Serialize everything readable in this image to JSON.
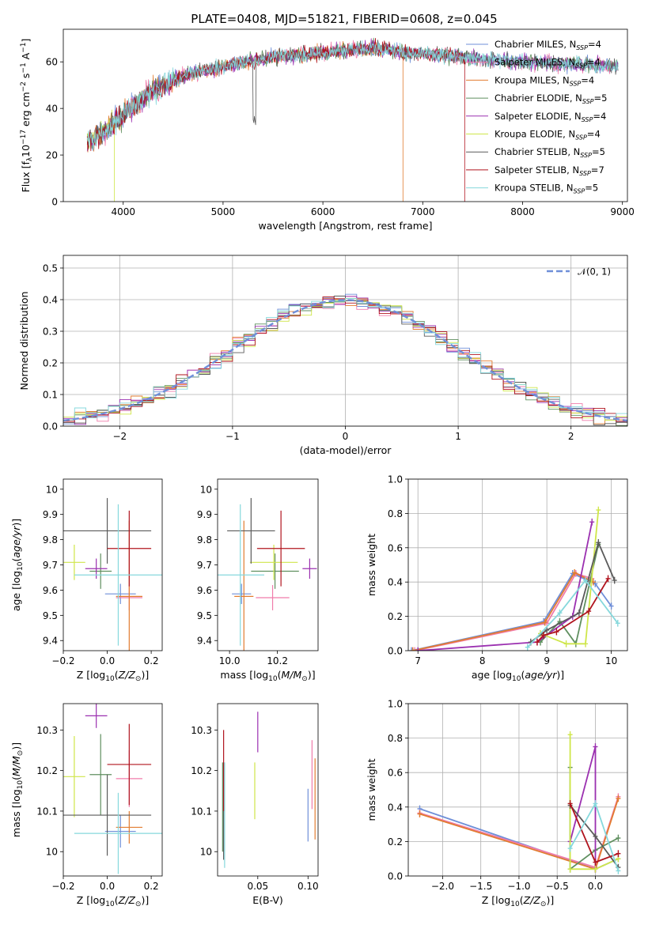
{
  "figure": {
    "title": "PLATE=0408, MJD=51821, FIBERID=0608, z=0.045"
  },
  "models": [
    {
      "name": "Chabrier MILES",
      "nssp": "4",
      "color": "#6f8fd8"
    },
    {
      "name": "Salpeter MILES",
      "nssp": "4",
      "color": "#f07cab"
    },
    {
      "name": "Kroupa MILES",
      "nssp": "4",
      "color": "#e27c30"
    },
    {
      "name": "Chabrier ELODIE",
      "nssp": "5",
      "color": "#5f8f5f"
    },
    {
      "name": "Salpeter ELODIE",
      "nssp": "4",
      "color": "#9b30b0"
    },
    {
      "name": "Kroupa ELODIE",
      "nssp": "4",
      "color": "#cfe64a"
    },
    {
      "name": "Chabrier STELIB",
      "nssp": "5",
      "color": "#5a5a5a"
    },
    {
      "name": "Salpeter STELIB",
      "nssp": "7",
      "color": "#b0141e"
    },
    {
      "name": "Kroupa STELIB",
      "nssp": "5",
      "color": "#86d8dc"
    }
  ],
  "chart_data": [
    {
      "id": "spectrum",
      "type": "line",
      "xlabel": "wavelength [Angstrom, rest frame]",
      "ylabel": "Flux [f_λ10^-17 erg cm^-2 s^-1 A^-1]",
      "ylabel_parts": [
        "Flux [f",
        "λ",
        "10",
        "−17",
        " erg cm",
        "−2",
        " s",
        "−1",
        " A",
        "−1",
        "]"
      ],
      "xlim": [
        3400,
        9050
      ],
      "ylim": [
        0,
        74
      ],
      "xticks": [
        4000,
        5000,
        6000,
        7000,
        8000,
        9000
      ],
      "yticks": [
        0,
        20,
        40,
        60
      ],
      "legend_position": "upper right",
      "legend_subscript": "SSP",
      "curve_knots": {
        "x": [
          3640,
          3800,
          4000,
          4300,
          4600,
          5000,
          5500,
          6000,
          6500,
          6800,
          7200,
          7600,
          8000,
          8500,
          8900
        ],
        "y": [
          25,
          30,
          37,
          48,
          54,
          58,
          62,
          64,
          66,
          64,
          63,
          61,
          60,
          59,
          58
        ]
      },
      "drops": [
        {
          "model": "Kroupa ELODIE",
          "x": 3910
        },
        {
          "model": "Kroupa MILES",
          "x": 6800
        },
        {
          "model": "Salpeter STELIB",
          "x": 7420
        }
      ]
    },
    {
      "id": "residuals",
      "type": "histogram",
      "xlabel": "(data-model)/error",
      "ylabel": "Normed distribution",
      "xlim": [
        -2.5,
        2.5
      ],
      "ylim": [
        0,
        0.54
      ],
      "xticks": [
        -2,
        -1,
        0,
        1,
        2
      ],
      "xtick_labels": [
        "−2",
        "−1",
        "0",
        "1",
        "2"
      ],
      "yticks": [
        0.0,
        0.1,
        0.2,
        0.3,
        0.4,
        0.5
      ],
      "ytick_labels": [
        "0.0",
        "0.1",
        "0.2",
        "0.3",
        "0.4",
        "0.5"
      ],
      "bin_width": 0.1,
      "reference": {
        "label": "𝒩(0, 1)",
        "color": "#6f8fd8"
      },
      "legend_position": "upper right",
      "grid": true
    },
    {
      "id": "age_vs_Z",
      "type": "errorbar",
      "xlabel": "Z [log10(Z/Z_sun)]",
      "ylabel": "age [log10(age/yr)]",
      "xlim": [
        -0.2,
        0.25
      ],
      "ylim": [
        9.36,
        10.04
      ],
      "xticks": [
        -0.2,
        0.0,
        0.2
      ],
      "xtick_labels": [
        "−0.2",
        "0.0",
        "0.2"
      ],
      "yticks": [
        9.4,
        9.5,
        9.6,
        9.7,
        9.8,
        9.9,
        10.0
      ],
      "points": [
        {
          "model": "Chabrier MILES",
          "x": 0.06,
          "xerr": 0.07,
          "y": 9.585,
          "yerr": 0.04
        },
        {
          "model": "Salpeter MILES",
          "x": 0.1,
          "xerr": 0.06,
          "y": 9.57,
          "yerr": 0.05
        },
        {
          "model": "Kroupa MILES",
          "x": 0.1,
          "xerr": 0.06,
          "y": 9.575,
          "yerr": 0.3
        },
        {
          "model": "Chabrier ELODIE",
          "x": -0.03,
          "xerr": 0.05,
          "y": 9.675,
          "yerr": 0.07
        },
        {
          "model": "Salpeter ELODIE",
          "x": -0.05,
          "xerr": 0.05,
          "y": 9.685,
          "yerr": 0.04
        },
        {
          "model": "Kroupa ELODIE",
          "x": -0.15,
          "xerr": 0.05,
          "y": 9.71,
          "yerr": 0.07
        },
        {
          "model": "Chabrier STELIB",
          "x": 0.0,
          "xerr": 0.2,
          "y": 9.835,
          "yerr": 0.13
        },
        {
          "model": "Salpeter STELIB",
          "x": 0.1,
          "xerr": 0.1,
          "y": 9.765,
          "yerr": 0.15
        },
        {
          "model": "Kroupa STELIB",
          "x": 0.05,
          "xerr": 0.2,
          "y": 9.66,
          "yerr": 0.28
        }
      ]
    },
    {
      "id": "age_vs_mass",
      "type": "errorbar",
      "xlabel": "mass [log10(M/M_sun)]",
      "ylabel": "",
      "xlim": [
        9.95,
        10.37
      ],
      "ylim": [
        9.36,
        10.04
      ],
      "xticks": [
        10.0,
        10.2
      ],
      "xtick_labels": [
        "10.0",
        "10.2"
      ],
      "yticks": [
        9.4,
        9.5,
        9.6,
        9.7,
        9.8,
        9.9,
        10.0
      ],
      "points": [
        {
          "model": "Chabrier MILES",
          "x": 10.05,
          "xerr": 0.04,
          "y": 9.585,
          "yerr": 0.04
        },
        {
          "model": "Salpeter MILES",
          "x": 10.18,
          "xerr": 0.07,
          "y": 9.57,
          "yerr": 0.05
        },
        {
          "model": "Kroupa MILES",
          "x": 10.06,
          "xerr": 0.04,
          "y": 9.575,
          "yerr": 0.3
        },
        {
          "model": "Chabrier ELODIE",
          "x": 10.19,
          "xerr": 0.1,
          "y": 9.675,
          "yerr": 0.07
        },
        {
          "model": "Salpeter ELODIE",
          "x": 10.335,
          "xerr": 0.03,
          "y": 9.685,
          "yerr": 0.04
        },
        {
          "model": "Kroupa ELODIE",
          "x": 10.185,
          "xerr": 0.1,
          "y": 9.71,
          "yerr": 0.07
        },
        {
          "model": "Chabrier STELIB",
          "x": 10.09,
          "xerr": 0.1,
          "y": 9.835,
          "yerr": 0.13
        },
        {
          "model": "Salpeter STELIB",
          "x": 10.215,
          "xerr": 0.1,
          "y": 9.765,
          "yerr": 0.15
        },
        {
          "model": "Kroupa STELIB",
          "x": 10.045,
          "xerr": 0.1,
          "y": 9.66,
          "yerr": 0.28
        }
      ]
    },
    {
      "id": "mass_weight_vs_age",
      "type": "line",
      "xlabel": "age [log10(age/yr)]",
      "ylabel": "mass weight",
      "xlim": [
        6.85,
        10.25
      ],
      "ylim": [
        0,
        1.0
      ],
      "xticks": [
        7,
        8,
        9,
        10
      ],
      "yticks": [
        0.0,
        0.2,
        0.4,
        0.6,
        0.8,
        1.0
      ],
      "ytick_labels": [
        "0.0",
        "0.2",
        "0.4",
        "0.6",
        "0.8",
        "1.0"
      ],
      "grid": true,
      "series": [
        {
          "model": "Chabrier MILES",
          "x": [
            6.9,
            8.95,
            9.4,
            9.75,
            10.0
          ],
          "y": [
            0.0,
            0.17,
            0.45,
            0.39,
            0.26
          ],
          "yerr": 0.02
        },
        {
          "model": "Salpeter MILES",
          "x": [
            6.95,
            9.0,
            9.45,
            9.7
          ],
          "y": [
            0.0,
            0.16,
            0.45,
            0.42
          ],
          "yerr": 0.02
        },
        {
          "model": "Kroupa MILES",
          "x": [
            6.92,
            8.97,
            9.43,
            9.72
          ],
          "y": [
            0.0,
            0.165,
            0.455,
            0.4
          ],
          "yerr": 0.02
        },
        {
          "model": "Chabrier ELODIE",
          "x": [
            8.9,
            9.2,
            9.45,
            9.8
          ],
          "y": [
            0.05,
            0.17,
            0.04,
            0.62
          ],
          "yerr": 0.02
        },
        {
          "model": "Salpeter ELODIE",
          "x": [
            7.0,
            8.85,
            9.4,
            9.7
          ],
          "y": [
            0.0,
            0.05,
            0.2,
            0.75
          ],
          "yerr": 0.02
        },
        {
          "model": "Kroupa ELODIE",
          "x": [
            8.9,
            9.3,
            9.6,
            9.8
          ],
          "y": [
            0.1,
            0.04,
            0.04,
            0.82
          ],
          "yerr": 0.02
        },
        {
          "model": "Chabrier STELIB",
          "x": [
            8.75,
            9.0,
            9.5,
            9.8,
            10.05
          ],
          "y": [
            0.05,
            0.12,
            0.22,
            0.63,
            0.41
          ],
          "yerr": 0.02
        },
        {
          "model": "Salpeter STELIB",
          "x": [
            8.85,
            8.95,
            9.15,
            9.65,
            9.95
          ],
          "y": [
            0.05,
            0.09,
            0.11,
            0.23,
            0.42
          ],
          "yerr": 0.02
        },
        {
          "model": "Kroupa STELIB",
          "x": [
            8.7,
            9.2,
            9.6,
            10.1
          ],
          "y": [
            0.02,
            0.22,
            0.41,
            0.16
          ],
          "yerr": 0.02
        }
      ]
    },
    {
      "id": "mass_vs_Z",
      "type": "errorbar",
      "xlabel": "Z [log10(Z/Z_sun)]",
      "ylabel": "mass [log10(M/M_sun)]",
      "xlim": [
        -0.2,
        0.25
      ],
      "ylim": [
        9.94,
        10.365
      ],
      "xticks": [
        -0.2,
        0.0,
        0.2
      ],
      "xtick_labels": [
        "−0.2",
        "0.0",
        "0.2"
      ],
      "yticks": [
        10.0,
        10.1,
        10.2,
        10.3
      ],
      "points": [
        {
          "model": "Chabrier MILES",
          "x": 0.06,
          "xerr": 0.07,
          "y": 10.05,
          "yerr": 0.04
        },
        {
          "model": "Salpeter MILES",
          "x": 0.1,
          "xerr": 0.06,
          "y": 10.18,
          "yerr": 0.07
        },
        {
          "model": "Kroupa MILES",
          "x": 0.1,
          "xerr": 0.06,
          "y": 10.06,
          "yerr": 0.04
        },
        {
          "model": "Chabrier ELODIE",
          "x": -0.03,
          "xerr": 0.05,
          "y": 10.19,
          "yerr": 0.1
        },
        {
          "model": "Salpeter ELODIE",
          "x": -0.05,
          "xerr": 0.05,
          "y": 10.335,
          "yerr": 0.03
        },
        {
          "model": "Kroupa ELODIE",
          "x": -0.15,
          "xerr": 0.05,
          "y": 10.185,
          "yerr": 0.1
        },
        {
          "model": "Chabrier STELIB",
          "x": 0.0,
          "xerr": 0.2,
          "y": 10.09,
          "yerr": 0.1
        },
        {
          "model": "Salpeter STELIB",
          "x": 0.1,
          "xerr": 0.1,
          "y": 10.215,
          "yerr": 0.1
        },
        {
          "model": "Kroupa STELIB",
          "x": 0.05,
          "xerr": 0.2,
          "y": 10.045,
          "yerr": 0.1
        }
      ]
    },
    {
      "id": "mass_vs_EBV",
      "type": "errorbar",
      "xlabel": "E(B-V)",
      "ylabel": "",
      "xlim": [
        0.01,
        0.11
      ],
      "ylim": [
        9.94,
        10.365
      ],
      "xticks": [
        0.05,
        0.1
      ],
      "xtick_labels": [
        "0.05",
        "0.10"
      ],
      "yticks": [
        10.0,
        10.1,
        10.2,
        10.3
      ],
      "points": [
        {
          "model": "Chabrier MILES",
          "x": 0.1,
          "y": 10.09,
          "yerr": 0.065
        },
        {
          "model": "Salpeter MILES",
          "x": 0.104,
          "y": 10.19,
          "yerr": 0.085
        },
        {
          "model": "Kroupa MILES",
          "x": 0.107,
          "y": 10.13,
          "yerr": 0.1
        },
        {
          "model": "Chabrier ELODIE",
          "x": 0.015,
          "y": 10.11,
          "yerr": 0.11
        },
        {
          "model": "Salpeter ELODIE",
          "x": 0.05,
          "y": 10.295,
          "yerr": 0.05
        },
        {
          "model": "Kroupa ELODIE",
          "x": 0.047,
          "y": 10.15,
          "yerr": 0.07
        },
        {
          "model": "Chabrier STELIB",
          "x": 0.016,
          "y": 10.1,
          "yerr": 0.12
        },
        {
          "model": "Salpeter STELIB",
          "x": 0.016,
          "y": 10.2,
          "yerr": 0.1
        },
        {
          "model": "Kroupa STELIB",
          "x": 0.017,
          "y": 10.09,
          "yerr": 0.13
        }
      ]
    },
    {
      "id": "mass_weight_vs_Z",
      "type": "line",
      "xlabel": "Z [log10(Z/Z_sun)]",
      "ylabel": "mass weight",
      "xlim": [
        -2.45,
        0.42
      ],
      "ylim": [
        0,
        1.0
      ],
      "xticks": [
        -2.0,
        -1.5,
        -1.0,
        -0.5,
        0.0
      ],
      "xtick_labels": [
        "−2.0",
        "−1.5",
        "−1.0",
        "−0.5",
        "0.0"
      ],
      "yticks": [
        0.0,
        0.2,
        0.4,
        0.6,
        0.8,
        1.0
      ],
      "ytick_labels": [
        "0.0",
        "0.2",
        "0.4",
        "0.6",
        "0.8",
        "1.0"
      ],
      "grid": true,
      "series": [
        {
          "model": "Chabrier MILES",
          "x": [
            -2.3,
            0.0,
            0.3
          ],
          "y": [
            0.39,
            0.04,
            0.1
          ],
          "yerr": 0.02
        },
        {
          "model": "Salpeter MILES",
          "x": [
            -2.3,
            0.0,
            0.3
          ],
          "y": [
            0.365,
            0.05,
            0.46
          ],
          "yerr": 0.02
        },
        {
          "model": "Kroupa MILES",
          "x": [
            -2.3,
            0.0,
            0.3
          ],
          "y": [
            0.36,
            0.04,
            0.45
          ],
          "yerr": 0.02
        },
        {
          "model": "Chabrier ELODIE",
          "x": [
            -0.33,
            -0.33,
            0.0,
            0.3
          ],
          "y": [
            0.63,
            0.04,
            0.15,
            0.22
          ],
          "yerr": 0.02
        },
        {
          "model": "Salpeter ELODIE",
          "x": [
            -0.33,
            0.0,
            0.0
          ],
          "y": [
            0.2,
            0.75,
            0.04
          ],
          "yerr": 0.02
        },
        {
          "model": "Kroupa ELODIE",
          "x": [
            -0.33,
            -0.33,
            0.0,
            0.3
          ],
          "y": [
            0.82,
            0.04,
            0.04,
            0.1
          ],
          "yerr": 0.02
        },
        {
          "model": "Chabrier STELIB",
          "x": [
            -0.33,
            0.0,
            0.3
          ],
          "y": [
            0.41,
            0.23,
            0.05
          ],
          "yerr": 0.02
        },
        {
          "model": "Salpeter STELIB",
          "x": [
            -0.33,
            0.0,
            0.3
          ],
          "y": [
            0.42,
            0.08,
            0.13
          ],
          "yerr": 0.02
        },
        {
          "model": "Kroupa STELIB",
          "x": [
            -0.33,
            0.0,
            0.3
          ],
          "y": [
            0.16,
            0.42,
            0.03
          ],
          "yerr": 0.02
        }
      ]
    }
  ]
}
